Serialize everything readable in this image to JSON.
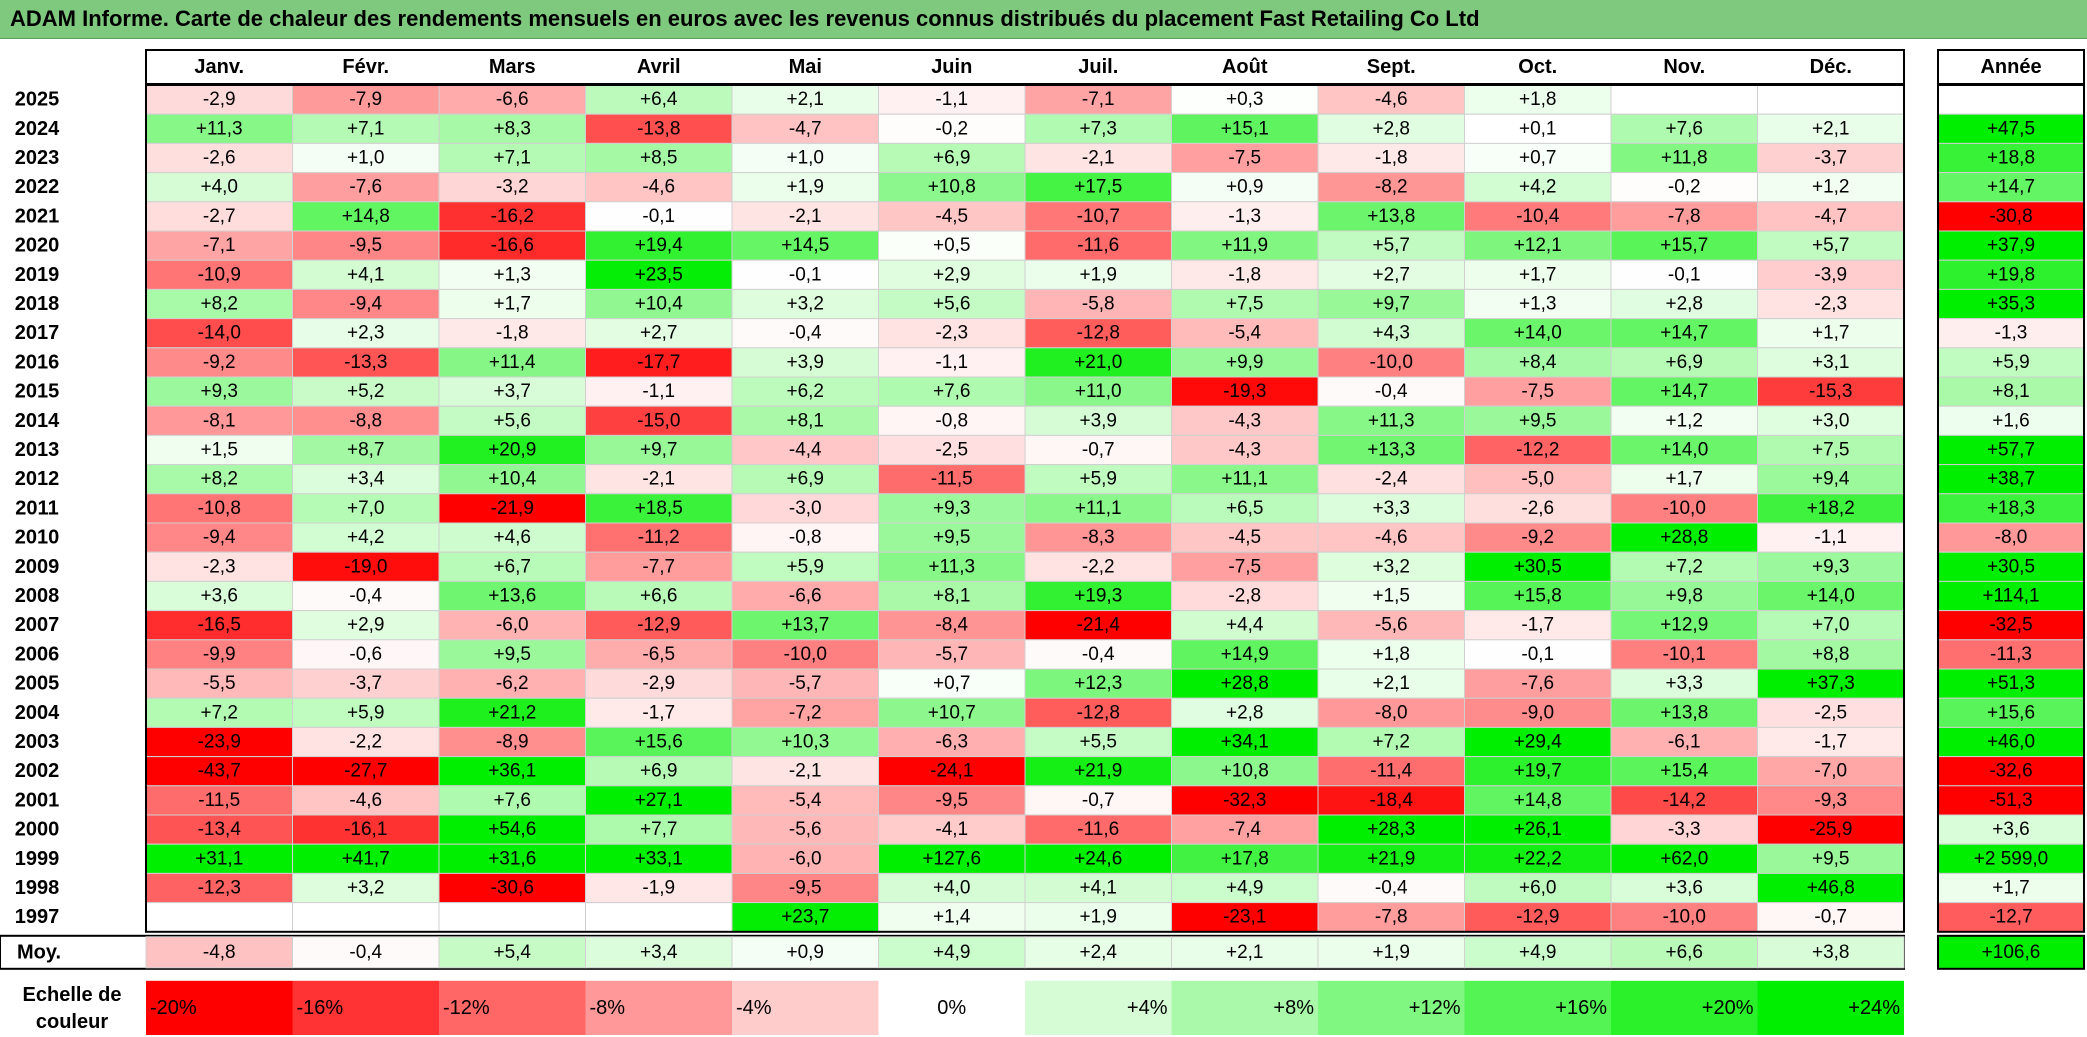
{
  "title": "ADAM Informe. Carte de chaleur des rendements mensuels en euros avec les revenus connus distribués du placement Fast Retailing Co Ltd",
  "chart_data": {
    "type": "heatmap",
    "columns": [
      "Janv.",
      "Févr.",
      "Mars",
      "Avril",
      "Mai",
      "Juin",
      "Juil.",
      "Août",
      "Sept.",
      "Oct.",
      "Nov.",
      "Déc."
    ],
    "year_header": "Année",
    "rows": [
      {
        "year": "2025",
        "values": [
          -2.9,
          -7.9,
          -6.6,
          6.4,
          2.1,
          -1.1,
          -7.1,
          0.3,
          -4.6,
          1.8,
          null,
          null
        ],
        "annual": null
      },
      {
        "year": "2024",
        "values": [
          11.3,
          7.1,
          8.3,
          -13.8,
          -4.7,
          -0.2,
          7.3,
          15.1,
          2.8,
          0.1,
          7.6,
          2.1
        ],
        "annual": 47.5
      },
      {
        "year": "2023",
        "values": [
          -2.6,
          1.0,
          7.1,
          8.5,
          1.0,
          6.9,
          -2.1,
          -7.5,
          -1.8,
          0.7,
          11.8,
          -3.7
        ],
        "annual": 18.8
      },
      {
        "year": "2022",
        "values": [
          4.0,
          -7.6,
          -3.2,
          -4.6,
          1.9,
          10.8,
          17.5,
          0.9,
          -8.2,
          4.2,
          -0.2,
          1.2
        ],
        "annual": 14.7
      },
      {
        "year": "2021",
        "values": [
          -2.7,
          14.8,
          -16.2,
          -0.1,
          -2.1,
          -4.5,
          -10.7,
          -1.3,
          13.8,
          -10.4,
          -7.8,
          -4.7
        ],
        "annual": -30.8
      },
      {
        "year": "2020",
        "values": [
          -7.1,
          -9.5,
          -16.6,
          19.4,
          14.5,
          0.5,
          -11.6,
          11.9,
          5.7,
          12.1,
          15.7,
          5.7
        ],
        "annual": 37.9
      },
      {
        "year": "2019",
        "values": [
          -10.9,
          4.1,
          1.3,
          23.5,
          -0.1,
          2.9,
          1.9,
          -1.8,
          2.7,
          1.7,
          -0.1,
          -3.9
        ],
        "annual": 19.8
      },
      {
        "year": "2018",
        "values": [
          8.2,
          -9.4,
          1.7,
          10.4,
          3.2,
          5.6,
          -5.8,
          7.5,
          9.7,
          1.3,
          2.8,
          -2.3
        ],
        "annual": 35.3
      },
      {
        "year": "2017",
        "values": [
          -14.0,
          2.3,
          -1.8,
          2.7,
          -0.4,
          -2.3,
          -12.8,
          -5.4,
          4.3,
          14.0,
          14.7,
          1.7
        ],
        "annual": -1.3
      },
      {
        "year": "2016",
        "values": [
          -9.2,
          -13.3,
          11.4,
          -17.7,
          3.9,
          -1.1,
          21.0,
          9.9,
          -10.0,
          8.4,
          6.9,
          3.1
        ],
        "annual": 5.9
      },
      {
        "year": "2015",
        "values": [
          9.3,
          5.2,
          3.7,
          -1.1,
          6.2,
          7.6,
          11.0,
          -19.3,
          -0.4,
          -7.5,
          14.7,
          -15.3
        ],
        "annual": 8.1
      },
      {
        "year": "2014",
        "values": [
          -8.1,
          -8.8,
          5.6,
          -15.0,
          8.1,
          -0.8,
          3.9,
          -4.3,
          11.3,
          9.5,
          1.2,
          3.0
        ],
        "annual": 1.6
      },
      {
        "year": "2013",
        "values": [
          1.5,
          8.7,
          20.9,
          9.7,
          -4.4,
          -2.5,
          -0.7,
          -4.3,
          13.3,
          -12.2,
          14.0,
          7.5
        ],
        "annual": 57.7
      },
      {
        "year": "2012",
        "values": [
          8.2,
          3.4,
          10.4,
          -2.1,
          6.9,
          -11.5,
          5.9,
          11.1,
          -2.4,
          -5.0,
          1.7,
          9.4
        ],
        "annual": 38.7
      },
      {
        "year": "2011",
        "values": [
          -10.8,
          7.0,
          -21.9,
          18.5,
          -3.0,
          9.3,
          11.1,
          6.5,
          3.3,
          -2.6,
          -10.0,
          18.2
        ],
        "annual": 18.3
      },
      {
        "year": "2010",
        "values": [
          -9.4,
          4.2,
          4.6,
          -11.2,
          -0.8,
          9.5,
          -8.3,
          -4.5,
          -4.6,
          -9.2,
          28.8,
          -1.1
        ],
        "annual": -8.0
      },
      {
        "year": "2009",
        "values": [
          -2.3,
          -19.0,
          6.7,
          -7.7,
          5.9,
          11.3,
          -2.2,
          -7.5,
          3.2,
          30.5,
          7.2,
          9.3
        ],
        "annual": 30.5
      },
      {
        "year": "2008",
        "values": [
          3.6,
          -0.4,
          13.6,
          6.6,
          -6.6,
          8.1,
          19.3,
          -2.8,
          1.5,
          15.8,
          9.8,
          14.0
        ],
        "annual": 114.1
      },
      {
        "year": "2007",
        "values": [
          -16.5,
          2.9,
          -6.0,
          -12.9,
          13.7,
          -8.4,
          -21.4,
          4.4,
          -5.6,
          -1.7,
          12.9,
          7.0
        ],
        "annual": -32.5
      },
      {
        "year": "2006",
        "values": [
          -9.9,
          -0.6,
          9.5,
          -6.5,
          -10.0,
          -5.7,
          -0.4,
          14.9,
          1.8,
          -0.1,
          -10.1,
          8.8
        ],
        "annual": -11.3
      },
      {
        "year": "2005",
        "values": [
          -5.5,
          -3.7,
          -6.2,
          -2.9,
          -5.7,
          0.7,
          12.3,
          28.8,
          2.1,
          -7.6,
          3.3,
          37.3
        ],
        "annual": 51.3
      },
      {
        "year": "2004",
        "values": [
          7.2,
          5.9,
          21.2,
          -1.7,
          -7.2,
          10.7,
          -12.8,
          2.8,
          -8.0,
          -9.0,
          13.8,
          -2.5
        ],
        "annual": 15.6
      },
      {
        "year": "2003",
        "values": [
          -23.9,
          -2.2,
          -8.9,
          15.6,
          10.3,
          -6.3,
          5.5,
          34.1,
          7.2,
          29.4,
          -6.1,
          -1.7
        ],
        "annual": 46.0
      },
      {
        "year": "2002",
        "values": [
          -43.7,
          -27.7,
          36.1,
          6.9,
          -2.1,
          -24.1,
          21.9,
          10.8,
          -11.4,
          19.7,
          15.4,
          -7.0
        ],
        "annual": -32.6
      },
      {
        "year": "2001",
        "values": [
          -11.5,
          -4.6,
          7.6,
          27.1,
          -5.4,
          -9.5,
          -0.7,
          -32.3,
          -18.4,
          14.8,
          -14.2,
          -9.3
        ],
        "annual": -51.3
      },
      {
        "year": "2000",
        "values": [
          -13.4,
          -16.1,
          54.6,
          7.7,
          -5.6,
          -4.1,
          -11.6,
          -7.4,
          28.3,
          26.1,
          -3.3,
          -25.9
        ],
        "annual": 3.6
      },
      {
        "year": "1999",
        "values": [
          31.1,
          41.7,
          31.6,
          33.1,
          -6.0,
          127.6,
          24.6,
          17.8,
          21.9,
          22.2,
          62.0,
          9.5
        ],
        "annual": 2599.0
      },
      {
        "year": "1998",
        "values": [
          -12.3,
          3.2,
          -30.6,
          -1.9,
          -9.5,
          4.0,
          4.1,
          4.9,
          -0.4,
          6.0,
          3.6,
          46.8
        ],
        "annual": 1.7
      },
      {
        "year": "1997",
        "values": [
          null,
          null,
          null,
          null,
          23.7,
          1.4,
          1.9,
          -23.1,
          -7.8,
          -12.9,
          -10.0,
          -0.7
        ],
        "annual": -12.7
      }
    ],
    "average": {
      "label": "Moy.",
      "values": [
        -4.8,
        -0.4,
        5.4,
        3.4,
        0.9,
        4.9,
        2.4,
        2.1,
        1.9,
        4.9,
        6.6,
        3.8
      ],
      "annual": 106.6
    },
    "scale": {
      "label_line1": "Echelle de",
      "label_line2": "couleur",
      "steps": [
        "-20%",
        "-16%",
        "-12%",
        "-8%",
        "-4%",
        "0%",
        "+4%",
        "+8%",
        "+12%",
        "+16%",
        "+20%",
        "+24%"
      ],
      "step_values": [
        -20,
        -16,
        -12,
        -8,
        -4,
        0,
        4,
        8,
        12,
        16,
        20,
        24
      ]
    },
    "colors": {
      "negative_max": "#ff0000",
      "neutral": "#ffffff",
      "positive_max": "#00ee00",
      "title_background": "#7fc97f"
    }
  }
}
